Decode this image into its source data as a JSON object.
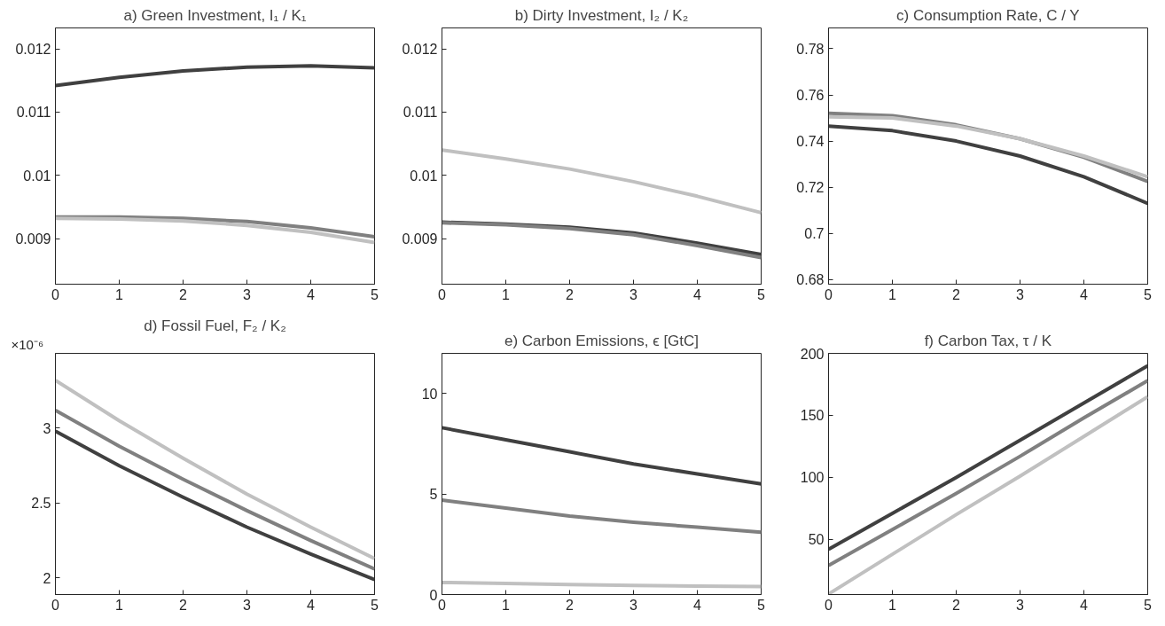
{
  "chart_data": [
    {
      "type": "line",
      "title": "a) Green Investment, I₁ / K₁",
      "x": [
        0,
        1,
        2,
        3,
        4,
        5
      ],
      "xlim": [
        0,
        5
      ],
      "xticks": [
        0,
        1,
        2,
        3,
        4,
        5
      ],
      "ylim": [
        0.00828,
        0.01233
      ],
      "yticks": [
        0.009,
        0.01,
        0.011,
        0.012
      ],
      "series": [
        {
          "color": "#404040",
          "values": [
            0.01142,
            0.01155,
            0.01165,
            0.01171,
            0.01173,
            0.0117
          ]
        },
        {
          "color": "#808080",
          "values": [
            0.00934,
            0.00934,
            0.00932,
            0.00927,
            0.00917,
            0.00903
          ]
        },
        {
          "color": "#c0c0c0",
          "values": [
            0.00932,
            0.00931,
            0.00928,
            0.00921,
            0.0091,
            0.00894
          ]
        }
      ]
    },
    {
      "type": "line",
      "title": "b) Dirty Investment, I₂ / K₂",
      "x": [
        0,
        1,
        2,
        3,
        4,
        5
      ],
      "xlim": [
        0,
        5
      ],
      "xticks": [
        0,
        1,
        2,
        3,
        4,
        5
      ],
      "ylim": [
        0.00828,
        0.01233
      ],
      "yticks": [
        0.009,
        0.01,
        0.011,
        0.012
      ],
      "series": [
        {
          "color": "#404040",
          "values": [
            0.00926,
            0.00923,
            0.00918,
            0.00909,
            0.00893,
            0.00875
          ]
        },
        {
          "color": "#808080",
          "values": [
            0.00925,
            0.00922,
            0.00916,
            0.00906,
            0.00889,
            0.0087
          ]
        },
        {
          "color": "#c0c0c0",
          "values": [
            0.0104,
            0.01026,
            0.0101,
            0.0099,
            0.00967,
            0.00941
          ]
        }
      ]
    },
    {
      "type": "line",
      "title": "c) Consumption Rate, C / Y",
      "x": [
        0,
        1,
        2,
        3,
        4,
        5
      ],
      "xlim": [
        0,
        5
      ],
      "xticks": [
        0,
        1,
        2,
        3,
        4,
        5
      ],
      "ylim": [
        0.678,
        0.789
      ],
      "yticks": [
        0.68,
        0.7,
        0.72,
        0.74,
        0.76,
        0.78
      ],
      "series": [
        {
          "color": "#404040",
          "values": [
            0.7465,
            0.7445,
            0.74,
            0.7335,
            0.7245,
            0.713
          ]
        },
        {
          "color": "#808080",
          "values": [
            0.752,
            0.751,
            0.747,
            0.741,
            0.733,
            0.7225
          ]
        },
        {
          "color": "#c0c0c0",
          "values": [
            0.7505,
            0.75,
            0.7465,
            0.741,
            0.7335,
            0.7245
          ]
        }
      ]
    },
    {
      "type": "line",
      "title": "d) Fossil Fuel, F₂ / K₂",
      "annotations": [
        "×10⁻⁶"
      ],
      "x": [
        0,
        1,
        2,
        3,
        4,
        5
      ],
      "xlim": [
        0,
        5
      ],
      "xticks": [
        0,
        1,
        2,
        3,
        4,
        5
      ],
      "ylim": [
        1.89,
        3.5
      ],
      "yticks": [
        2,
        2.5,
        3
      ],
      "series": [
        {
          "color": "#404040",
          "values": [
            2.98,
            2.75,
            2.54,
            2.34,
            2.16,
            1.99
          ]
        },
        {
          "color": "#808080",
          "values": [
            3.12,
            2.88,
            2.66,
            2.45,
            2.25,
            2.06
          ]
        },
        {
          "color": "#c0c0c0",
          "values": [
            3.32,
            3.05,
            2.8,
            2.56,
            2.34,
            2.13
          ]
        }
      ]
    },
    {
      "type": "line",
      "title": "e) Carbon Emissions, ϵ [GtC]",
      "x": [
        0,
        1,
        2,
        3,
        4,
        5
      ],
      "xlim": [
        0,
        5
      ],
      "xticks": [
        0,
        1,
        2,
        3,
        4,
        5
      ],
      "ylim": [
        0,
        12
      ],
      "yticks": [
        0,
        5,
        10
      ],
      "series": [
        {
          "color": "#404040",
          "values": [
            8.3,
            7.7,
            7.1,
            6.5,
            6.0,
            5.5
          ]
        },
        {
          "color": "#808080",
          "values": [
            4.7,
            4.3,
            3.9,
            3.6,
            3.35,
            3.1
          ]
        },
        {
          "color": "#c0c0c0",
          "values": [
            0.6,
            0.55,
            0.5,
            0.45,
            0.42,
            0.4
          ]
        }
      ]
    },
    {
      "type": "line",
      "title": "f) Carbon Tax, τ / K",
      "x": [
        0,
        1,
        2,
        3,
        4,
        5
      ],
      "xlim": [
        0,
        5
      ],
      "xticks": [
        0,
        1,
        2,
        3,
        4,
        5
      ],
      "ylim": [
        5.6,
        200
      ],
      "yticks": [
        50,
        100,
        150,
        200
      ],
      "series": [
        {
          "color": "#404040",
          "values": [
            42,
            71,
            100,
            130,
            160,
            190
          ]
        },
        {
          "color": "#808080",
          "values": [
            29,
            58,
            87,
            117,
            148,
            178
          ]
        },
        {
          "color": "#c0c0c0",
          "values": [
            6,
            38,
            70,
            101,
            133,
            165
          ]
        }
      ]
    }
  ]
}
